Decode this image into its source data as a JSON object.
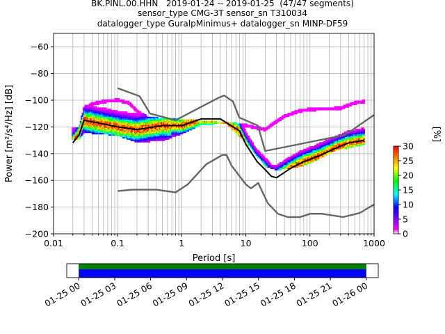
{
  "title_lines": [
    "BK.PINL.00.HHN   2019-01-24 -- 2019-01-25  (47/47 segments)",
    "sensor_type CMG-3T sensor_sn T310034",
    "datalogger_type GuralpMinimus+ datalogger_sn MINP-DF59"
  ],
  "chart_data": {
    "type": "heatmap",
    "xlabel": "Period [s]",
    "ylabel": "Power [m²/s⁴/Hz] [dB]",
    "xscale": "log",
    "xlim": [
      0.01,
      1000
    ],
    "ylim": [
      -200,
      -50
    ],
    "x_ticks": [
      0.01,
      0.1,
      1,
      10,
      100,
      1000
    ],
    "x_tick_labels": [
      "0.01",
      "0.1",
      "1",
      "10",
      "100",
      "1000"
    ],
    "y_ticks": [
      -60,
      -80,
      -100,
      -120,
      -140,
      -160,
      -180,
      -200
    ],
    "y_tick_labels": [
      "−60",
      "−80",
      "−100",
      "−120",
      "−140",
      "−160",
      "−180",
      "−200"
    ],
    "grid": true,
    "colorbar": {
      "label": "[%]",
      "range": [
        0,
        30
      ],
      "ticks": [
        0,
        5,
        10,
        15,
        20,
        25,
        30
      ],
      "colors": [
        "#ffffff",
        "#ff00ff",
        "#0000ff",
        "#00ffff",
        "#00ff00",
        "#ffff00",
        "#ff8000",
        "#ff0000"
      ]
    },
    "series": [
      {
        "role": "mean",
        "color": "#000000",
        "points": [
          [
            0.02,
            -132
          ],
          [
            0.025,
            -126
          ],
          [
            0.03,
            -115
          ],
          [
            0.05,
            -117
          ],
          [
            0.1,
            -120
          ],
          [
            0.2,
            -122
          ],
          [
            0.5,
            -119
          ],
          [
            1,
            -119
          ],
          [
            2,
            -114
          ],
          [
            4,
            -114
          ],
          [
            8,
            -123
          ],
          [
            10,
            -133
          ],
          [
            15,
            -146
          ],
          [
            20,
            -152
          ],
          [
            25,
            -157
          ],
          [
            30,
            -158
          ],
          [
            50,
            -151
          ],
          [
            80,
            -146
          ],
          [
            150,
            -141
          ],
          [
            250,
            -136
          ],
          [
            400,
            -132
          ],
          [
            700,
            -130
          ]
        ]
      },
      {
        "role": "noise-model-high",
        "color": "#666666",
        "points": [
          [
            0.1,
            -91
          ],
          [
            0.22,
            -97
          ],
          [
            0.32,
            -110
          ],
          [
            0.8,
            -115
          ],
          [
            3.8,
            -98
          ],
          [
            4.6,
            -96.5
          ],
          [
            6.3,
            -101
          ],
          [
            7.9,
            -113
          ],
          [
            15.4,
            -119
          ],
          [
            20,
            -138
          ],
          [
            354,
            -126
          ],
          [
            1000,
            -111
          ]
        ]
      },
      {
        "role": "noise-model-low",
        "color": "#666666",
        "points": [
          [
            0.1,
            -168
          ],
          [
            0.17,
            -167
          ],
          [
            0.4,
            -167
          ],
          [
            0.8,
            -169
          ],
          [
            1.24,
            -163
          ],
          [
            2.4,
            -148
          ],
          [
            4.3,
            -141
          ],
          [
            5,
            -141
          ],
          [
            6,
            -149
          ],
          [
            10,
            -163
          ],
          [
            12,
            -166
          ],
          [
            15.6,
            -162
          ],
          [
            21.9,
            -177
          ],
          [
            31.6,
            -185
          ],
          [
            45,
            -187.5
          ],
          [
            70,
            -187.5
          ],
          [
            101,
            -185
          ],
          [
            154,
            -185
          ],
          [
            328,
            -187.5
          ],
          [
            600,
            -184.4
          ],
          [
            1000,
            -178
          ]
        ]
      },
      {
        "role": "outlier-upper",
        "color": "#ff00ff",
        "points": [
          [
            0.025,
            -122
          ],
          [
            0.03,
            -106
          ],
          [
            0.04,
            -103
          ],
          [
            0.06,
            -101
          ],
          [
            0.1,
            -100
          ],
          [
            0.15,
            -102
          ],
          [
            0.2,
            -108
          ],
          [
            0.3,
            -114
          ],
          [
            10,
            -119
          ],
          [
            20,
            -122
          ],
          [
            40,
            -112
          ],
          [
            70,
            -108
          ],
          [
            100,
            -107
          ],
          [
            300,
            -106
          ],
          [
            500,
            -102
          ],
          [
            700,
            -101
          ]
        ]
      },
      {
        "role": "outlier-lower",
        "color": "#ff00ff",
        "points": [
          [
            0.025,
            -128
          ],
          [
            0.03,
            -123
          ],
          [
            0.1,
            -125
          ],
          [
            0.2,
            -130
          ],
          [
            0.5,
            -129
          ],
          [
            1,
            -124
          ],
          [
            2,
            -117
          ],
          [
            5,
            -116
          ],
          [
            10,
            -130
          ],
          [
            15,
            -140
          ],
          [
            20,
            -148
          ],
          [
            30,
            -151
          ],
          [
            60,
            -149
          ],
          [
            100,
            -146
          ],
          [
            250,
            -136
          ],
          [
            700,
            -132
          ]
        ]
      }
    ]
  },
  "timeline": {
    "x_labels": [
      "01-25 00",
      "01-25 03",
      "01-25 06",
      "01-25 09",
      "01-25 12",
      "01-25 15",
      "01-25 18",
      "01-25 21",
      "01-26 00"
    ],
    "range_hours": [
      -1,
      25
    ],
    "data_coverage_hours": [
      0,
      24
    ],
    "colors": [
      "#0000ff",
      "#008000"
    ]
  }
}
